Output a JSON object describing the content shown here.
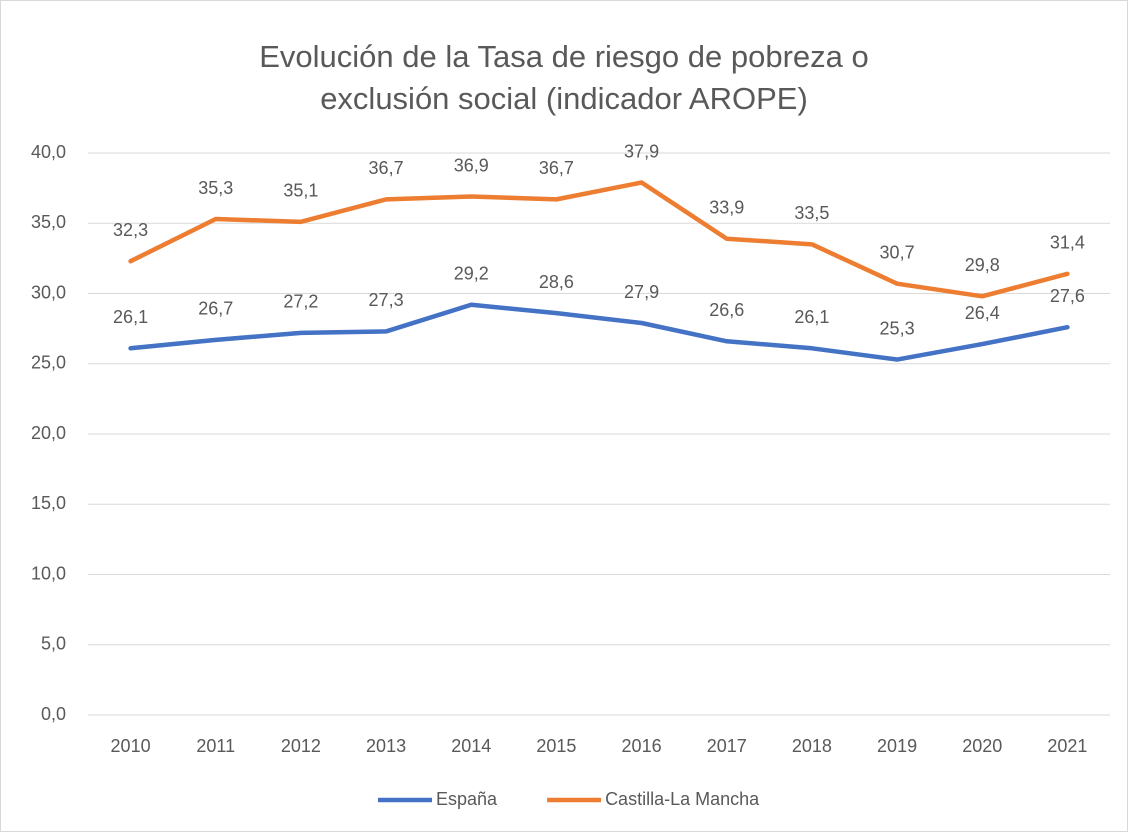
{
  "chart_data": {
    "type": "line",
    "title": "Evolución de la Tasa de riesgo de pobreza o exclusión social (indicador AROPE)",
    "categories": [
      "2010",
      "2011",
      "2012",
      "2013",
      "2014",
      "2015",
      "2016",
      "2017",
      "2018",
      "2019",
      "2020",
      "2021"
    ],
    "series": [
      {
        "name": "España",
        "color": "#4472c4",
        "values": [
          26.1,
          26.7,
          27.2,
          27.3,
          29.2,
          28.6,
          27.9,
          26.6,
          26.1,
          25.3,
          26.4,
          27.6
        ],
        "value_labels": [
          "26,1",
          "26,7",
          "27,2",
          "27,3",
          "29,2",
          "28,6",
          "27,9",
          "26,6",
          "26,1",
          "25,3",
          "26,4",
          "27,6"
        ]
      },
      {
        "name": "Castilla-La Mancha",
        "color": "#ed7d31",
        "values": [
          32.3,
          35.3,
          35.1,
          36.7,
          36.9,
          36.7,
          37.9,
          33.9,
          33.5,
          30.7,
          29.8,
          31.4
        ],
        "value_labels": [
          "32,3",
          "35,3",
          "35,1",
          "36,7",
          "36,9",
          "36,7",
          "37,9",
          "33,9",
          "33,5",
          "30,7",
          "29,8",
          "31,4"
        ]
      }
    ],
    "ylim": [
      0,
      40
    ],
    "yticks": [
      {
        "value": 0,
        "label": "0,0"
      },
      {
        "value": 5,
        "label": "5,0"
      },
      {
        "value": 10,
        "label": "10,0"
      },
      {
        "value": 15,
        "label": "15,0"
      },
      {
        "value": 20,
        "label": "20,0"
      },
      {
        "value": 25,
        "label": "25,0"
      },
      {
        "value": 30,
        "label": "30,0"
      },
      {
        "value": 35,
        "label": "35,0"
      },
      {
        "value": 40,
        "label": "40,0"
      }
    ],
    "grid": true,
    "legend": "bottom"
  }
}
